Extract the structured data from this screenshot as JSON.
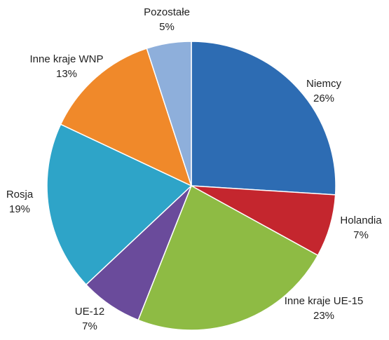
{
  "chart_data": {
    "type": "pie",
    "categories": [
      "Niemcy",
      "Holandia",
      "Inne kraje UE-15",
      "UE-12",
      "Rosja",
      "Inne kraje WNP",
      "Pozostałe"
    ],
    "values": [
      26,
      7,
      23,
      7,
      19,
      13,
      5
    ],
    "value_labels": [
      "26%",
      "7%",
      "23%",
      "7%",
      "19%",
      "13%",
      "5%"
    ],
    "colors": [
      "#2d6cb3",
      "#c4262e",
      "#8ebb44",
      "#6a4b9b",
      "#2ea4c8",
      "#f0892a",
      "#8eafdb"
    ]
  }
}
